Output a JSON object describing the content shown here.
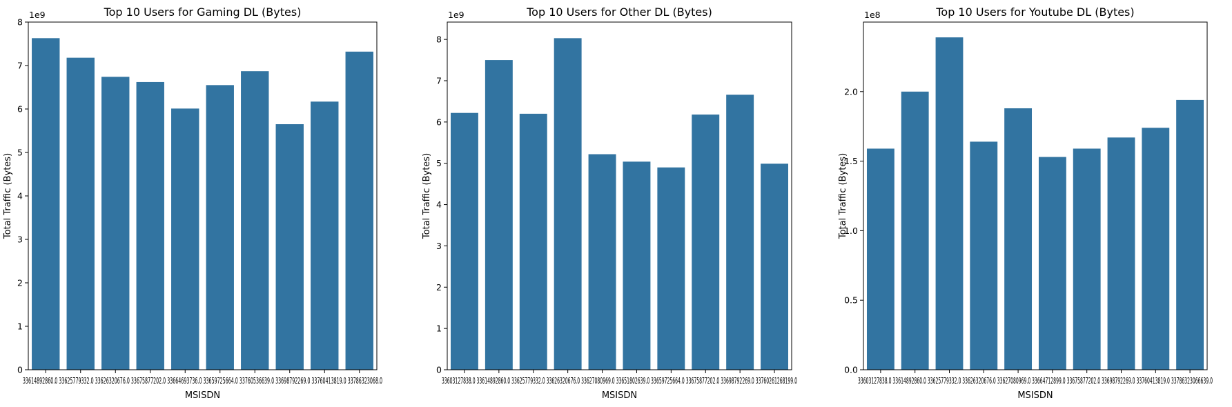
{
  "colors": {
    "bar": "#3274a1"
  },
  "chart_data": [
    {
      "type": "bar",
      "title": "Top 10 Users for Gaming DL (Bytes)",
      "xlabel": "MSISDN",
      "ylabel": "Total Traffic (Bytes)",
      "offset_label": "1e9",
      "scale": 1000000000,
      "ylim": [
        0,
        8
      ],
      "yticks": [
        0,
        1,
        2,
        3,
        4,
        5,
        6,
        7,
        8
      ],
      "ytick_labels": [
        "0",
        "1",
        "2",
        "3",
        "4",
        "5",
        "6",
        "7",
        "8"
      ],
      "categories": [
        "33614892860.0",
        "33625779332.0",
        "33626320676.0",
        "33675877202.0",
        "33664693736.0",
        "33659725664.0",
        "33760536639.0",
        "33698792269.0",
        "33760413819.0",
        "33786323068.0"
      ],
      "category_text": "33614892860.0 33625779332.0 33626320676.0 33675877202.0 33664693736.0 33659725664.0 33760536639.0 33698792269.0 33760413819.0 33786323068.0",
      "values": [
        7.63,
        7.18,
        6.74,
        6.62,
        6.01,
        6.55,
        6.87,
        5.65,
        6.17,
        7.32
      ]
    },
    {
      "type": "bar",
      "title": "Top 10 Users for Other DL (Bytes)",
      "xlabel": "MSISDN",
      "ylabel": "Total Traffic (Bytes)",
      "offset_label": "1e9",
      "scale": 1000000000,
      "ylim": [
        0,
        8.42
      ],
      "yticks": [
        0,
        1,
        2,
        3,
        4,
        5,
        6,
        7,
        8
      ],
      "ytick_labels": [
        "0",
        "1",
        "2",
        "3",
        "4",
        "5",
        "6",
        "7",
        "8"
      ],
      "categories": [
        "33603127838.0",
        "33614892860.0",
        "33625779332.0",
        "33626320676.0",
        "33627080969.0",
        "33651802639.0",
        "33659725664.0",
        "33675877202.0",
        "33698792269.0",
        "33760261268199.0"
      ],
      "category_text": "33603127838.0 33614892860.0 33625779332.0 33626320676.0 33627080969.0 33651802639.0 33659725664.0 33675877202.0 33698792269.0 33760261268199.0",
      "values": [
        6.22,
        7.5,
        6.2,
        8.03,
        5.22,
        5.04,
        4.9,
        6.18,
        6.66,
        4.99
      ]
    },
    {
      "type": "bar",
      "title": "Top 10 Users for Youtube DL (Bytes)",
      "xlabel": "MSISDN",
      "ylabel": "Total Traffic (Bytes)",
      "offset_label": "1e8",
      "scale": 100000000,
      "ylim": [
        0,
        2.5
      ],
      "yticks": [
        0,
        0.5,
        1.0,
        1.5,
        2.0
      ],
      "ytick_labels": [
        "0.0",
        "0.5",
        "1.0",
        "1.5",
        "2.0"
      ],
      "categories": [
        "33603127838.0",
        "33614892860.0",
        "33625779332.0",
        "33626320676.0",
        "33627080969.0",
        "33664712899.0",
        "33675877202.0",
        "33698792269.0",
        "33760413819.0",
        "33786323066639.0"
      ],
      "category_text": "33603127838.0 33614892860.0 33625779332.0 33626320676.0 33627080969.0 33664712899.0 33675877202.0 33698792269.0 33760413819.0 33786323066639.0",
      "values": [
        1.59,
        2.0,
        2.39,
        1.64,
        1.88,
        1.53,
        1.59,
        1.67,
        1.74,
        1.94
      ]
    }
  ]
}
